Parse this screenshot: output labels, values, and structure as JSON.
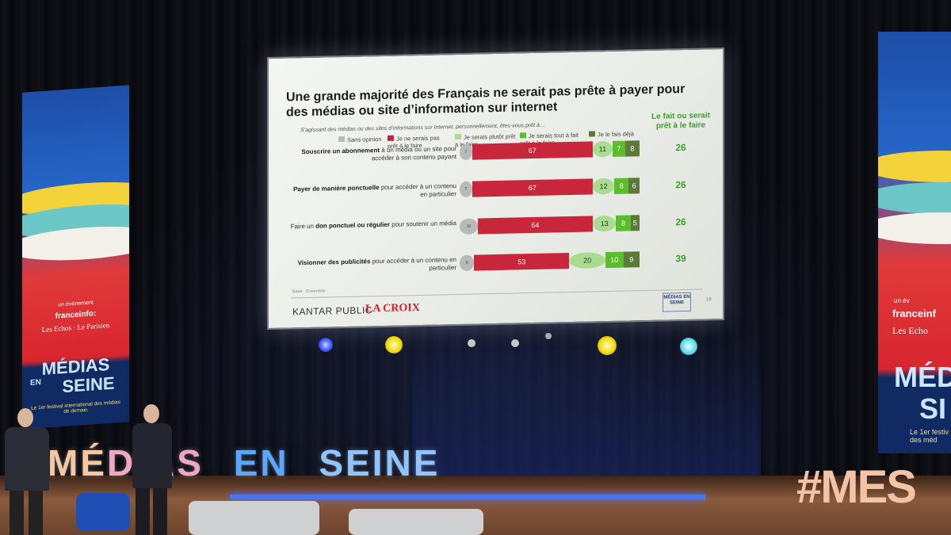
{
  "slide": {
    "title": "Une grande majorité des Français ne serait pas prête à payer pour des médias ou site d’information sur internet",
    "question": "S’agissant des médias ou des sites d’informations sur Internet, personnellement, êtes-vous prêt à…",
    "aside_heading": "Le fait ou serait prêt à le faire",
    "legend": [
      {
        "label": "Sans opinion",
        "color": "#b9b9b9"
      },
      {
        "label": "Je ne serais pas prêt à le faire",
        "color": "#c8263b"
      },
      {
        "label": "Je serais plutôt prêt à le faire",
        "color": "#a8dc8e"
      },
      {
        "label": "Je serais tout à fait prêt à le faire",
        "color": "#5bbd2a"
      },
      {
        "label": "Je le fais déjà",
        "color": "#5e7a3a"
      }
    ],
    "rows": [
      {
        "label_bold": "Souscrire un abonnement",
        "label_rest": " à un média ou un site pour accéder à son contenu payant",
        "values": [
          7,
          67,
          11,
          7,
          8
        ],
        "total": "26"
      },
      {
        "label_bold": "Payer de manière ponctuelle",
        "label_rest": " pour accéder à un contenu en particulier",
        "values": [
          7,
          67,
          12,
          8,
          6
        ],
        "total": "26"
      },
      {
        "label_pre": "Faire un ",
        "label_bold": "don ponctuel ou régulier",
        "label_rest": " pour soutenir un média",
        "values": [
          10,
          64,
          13,
          8,
          5
        ],
        "total": "26"
      },
      {
        "label_bold": "Visionner des publicités",
        "label_rest": " pour accéder à un contenu en particulier",
        "values": [
          8,
          53,
          20,
          10,
          9
        ],
        "total": "39"
      }
    ],
    "source": "Base : Ensemble",
    "footer_left": "KANTAR PUBLIC",
    "footer_partner": "LA CROIX",
    "footer_logo": "MÉDIAS EN SEINE",
    "page_number": "18"
  },
  "banner_left": {
    "event_line": "un événement",
    "sponsor1": "franceinfo:",
    "sponsor2": "Les Echos · Le Parisien",
    "name_top": "MÉDIAS",
    "name_mid": "EN",
    "name_bottom": "SEINE",
    "tagline": "Le 1er festival international des médias de demain"
  },
  "banner_right": {
    "event_line": "un év",
    "sponsor1": "franceinf",
    "sponsor2": "Les Echo",
    "name_top": "MÉDI",
    "name_bottom": "SI",
    "tagline": "Le 1er festiv des méd"
  },
  "stage_sign": [
    "MÉ",
    "DIAS",
    "EN",
    "SEINE"
  ],
  "hashtag_sign": "#MES"
}
